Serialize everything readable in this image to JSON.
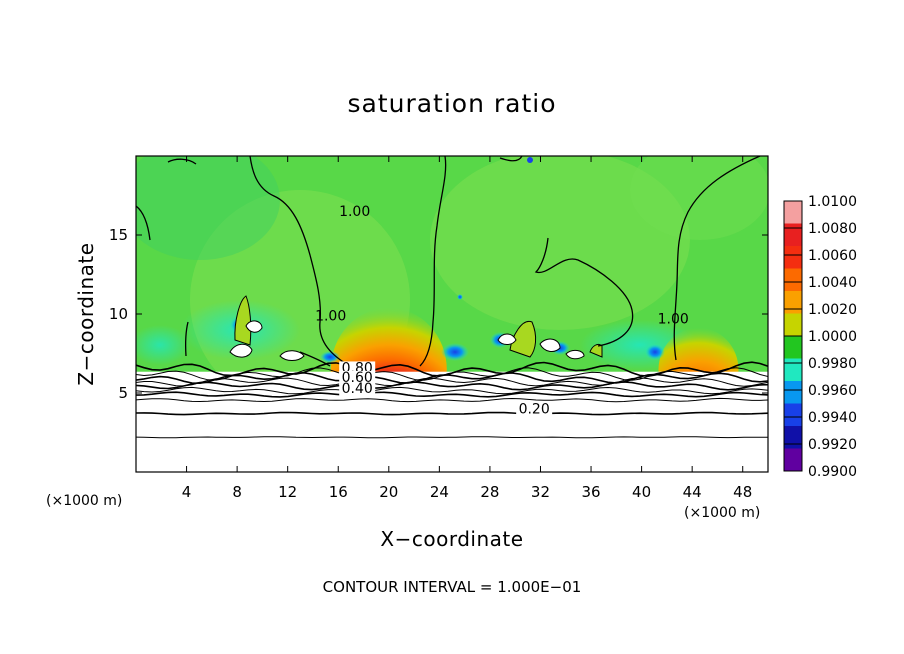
{
  "chart_data": {
    "type": "heatmap",
    "title": "saturation ratio",
    "xlabel": "X−coordinate",
    "ylabel": "Z−coordinate",
    "x_units": "(×1000 m)",
    "y_units": "(×1000 m)",
    "xlim": [
      0,
      50
    ],
    "ylim": [
      0,
      20
    ],
    "x_ticks": [
      4,
      8,
      12,
      16,
      20,
      24,
      28,
      32,
      36,
      40,
      44,
      48
    ],
    "y_ticks": [
      5,
      10,
      15
    ],
    "colorbar": {
      "range": [
        0.99,
        1.01
      ],
      "labels": [
        "1.0100",
        "1.0080",
        "1.0060",
        "1.0040",
        "1.0020",
        "1.0000",
        "0.9980",
        "0.9960",
        "0.9940",
        "0.9920",
        "0.9900"
      ],
      "colors": [
        "#f4a0a0",
        "#e82020",
        "#f42e10",
        "#fc6a00",
        "#faa000",
        "#c6d400",
        "#22c620",
        "#20e8c0",
        "#0898f0",
        "#1840e8",
        "#1010a8",
        "#6000a0"
      ]
    },
    "field": {
      "background_value": 1.0008,
      "boundary_layer_top_z": 6.6,
      "maxima": [
        {
          "x": 20.0,
          "z_base": 6.6,
          "peak": 1.012
        },
        {
          "x": 44.5,
          "z_base": 6.6,
          "peak": 1.009
        }
      ]
    },
    "contour_interval": 0.1,
    "contour_labels": [
      {
        "text": "1.00",
        "x": 17.3,
        "z": 16.2
      },
      {
        "text": "1.00",
        "x": 15.4,
        "z": 9.6
      },
      {
        "text": "1.00",
        "x": 42.5,
        "z": 9.4
      },
      {
        "text": "0.80",
        "x": 17.5,
        "z": 6.3
      },
      {
        "text": "0.60",
        "x": 17.5,
        "z": 5.7
      },
      {
        "text": "0.40",
        "x": 17.5,
        "z": 5.0
      },
      {
        "text": "0.20",
        "x": 31.5,
        "z": 3.7
      }
    ],
    "note": "CONTOUR INTERVAL = 1.000E−01"
  }
}
